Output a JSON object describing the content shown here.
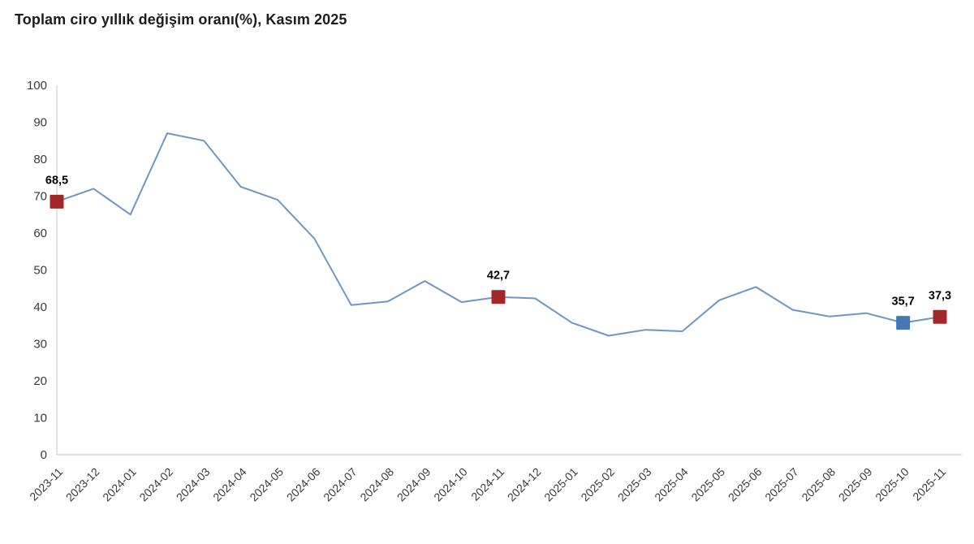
{
  "title": "Toplam ciro yıllık değişim oranı(%), Kasım 2025",
  "chart_data": {
    "type": "line",
    "title": "Toplam ciro yıllık değişim oranı(%), Kasım 2025",
    "xlabel": "",
    "ylabel": "",
    "ylim": [
      0,
      100
    ],
    "ytick_step": 10,
    "grid": false,
    "legend": "none",
    "line_color": "#6e96c3",
    "categories": [
      "2023-11",
      "2023-12",
      "2024-01",
      "2024-02",
      "2024-03",
      "2024-04",
      "2024-05",
      "2024-06",
      "2024-07",
      "2024-08",
      "2024-09",
      "2024-10",
      "2024-11",
      "2024-12",
      "2025-01",
      "2025-02",
      "2025-03",
      "2025-04",
      "2025-05",
      "2025-06",
      "2025-07",
      "2025-08",
      "2025-09",
      "2025-10",
      "2025-11"
    ],
    "values": [
      68.5,
      72,
      65,
      87,
      85,
      72.5,
      69,
      58.5,
      40.5,
      41.5,
      47,
      41.3,
      42.7,
      42.3,
      35.7,
      32.2,
      33.8,
      33.4,
      41.8,
      45.4,
      39.2,
      37.4,
      38.3,
      35.7,
      37.3
    ],
    "annotations": [
      {
        "index": 0,
        "label": "68,5",
        "marker_color": "#a32729"
      },
      {
        "index": 12,
        "label": "42,7",
        "marker_color": "#a32729"
      },
      {
        "index": 23,
        "label": "35,7",
        "marker_color": "#4677b8"
      },
      {
        "index": 24,
        "label": "37,3",
        "marker_color": "#a32729"
      }
    ]
  }
}
